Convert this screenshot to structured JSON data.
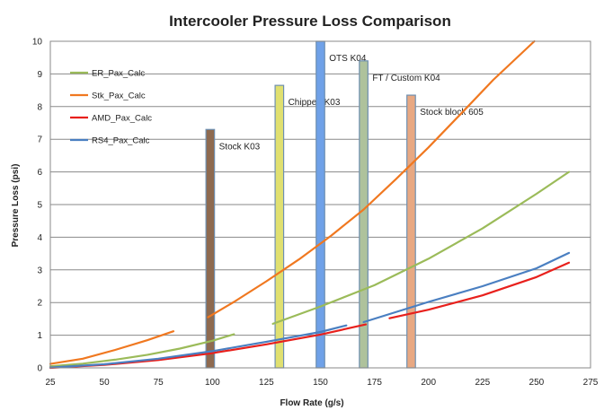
{
  "chart_data": {
    "type": "line",
    "title": "Intercooler Pressure Loss Comparison",
    "xlabel": "Flow Rate (g/s)",
    "ylabel": "Pressure Loss (psi)",
    "xlim": [
      25,
      275
    ],
    "ylim": [
      0,
      10
    ],
    "x_ticks": [
      25,
      50,
      75,
      100,
      125,
      150,
      175,
      200,
      225,
      250,
      275
    ],
    "y_ticks": [
      0,
      1,
      2,
      3,
      4,
      5,
      6,
      7,
      8,
      9,
      10
    ],
    "grid": "horizontal",
    "legend_position": "top-left",
    "series": [
      {
        "name": "ER_Pax_Calc",
        "color": "#9bbb59",
        "segments": [
          {
            "x": [
              25,
              40,
              55,
              70,
              85,
              100,
              110
            ],
            "y": [
              0.05,
              0.13,
              0.25,
              0.4,
              0.59,
              0.83,
              1.03
            ]
          },
          {
            "x": [
              128,
              150,
              175,
              200,
              225,
              250,
              265
            ],
            "y": [
              1.35,
              1.88,
              2.53,
              3.34,
              4.27,
              5.33,
              6.0
            ]
          }
        ]
      },
      {
        "name": "Stk_Pax_Calc",
        "color": "#f07820",
        "segments": [
          {
            "x": [
              25,
              40,
              55,
              70,
              82
            ],
            "y": [
              0.12,
              0.28,
              0.55,
              0.85,
              1.12
            ]
          },
          {
            "x": [
              98,
              110,
              125,
              140,
              155,
              170,
              185,
              200,
              215,
              230,
              249
            ],
            "y": [
              1.55,
              2.02,
              2.65,
              3.32,
              4.05,
              4.85,
              5.78,
              6.75,
              7.78,
              8.82,
              10.0
            ]
          }
        ]
      },
      {
        "name": "AMD_Pax_Calc",
        "color": "#e8201c",
        "segments": [
          {
            "x": [
              25,
              50,
              75,
              100,
              125,
              150,
              171
            ],
            "y": [
              0.0,
              0.09,
              0.24,
              0.45,
              0.72,
              1.02,
              1.33
            ]
          },
          {
            "x": [
              182,
              200,
              225,
              250,
              265
            ],
            "y": [
              1.52,
              1.78,
              2.22,
              2.78,
              3.22
            ]
          }
        ]
      },
      {
        "name": "RS4_Pax_Calc",
        "color": "#4a7fc1",
        "segments": [
          {
            "x": [
              25,
              50,
              75,
              100,
              125,
              150,
              162
            ],
            "y": [
              0.01,
              0.11,
              0.28,
              0.51,
              0.8,
              1.1,
              1.3
            ]
          },
          {
            "x": [
              170,
              200,
              225,
              250,
              265
            ],
            "y": [
              1.4,
              2.02,
              2.5,
              3.05,
              3.52
            ]
          }
        ]
      }
    ],
    "bars": [
      {
        "label": "Stock K03",
        "x": 99,
        "value": 7.3,
        "color": "#8e6a50"
      },
      {
        "label": "Chipped K03",
        "x": 131,
        "value": 8.65,
        "color": "#e0e070"
      },
      {
        "label": "OTS K04",
        "x": 150,
        "value": 10.0,
        "color": "#6fa1e8"
      },
      {
        "label": "FT / Custom K04",
        "x": 170,
        "value": 9.4,
        "color": "#aec29c"
      },
      {
        "label": "Stock block 605",
        "x": 192,
        "value": 8.35,
        "color": "#e8a882"
      }
    ]
  }
}
